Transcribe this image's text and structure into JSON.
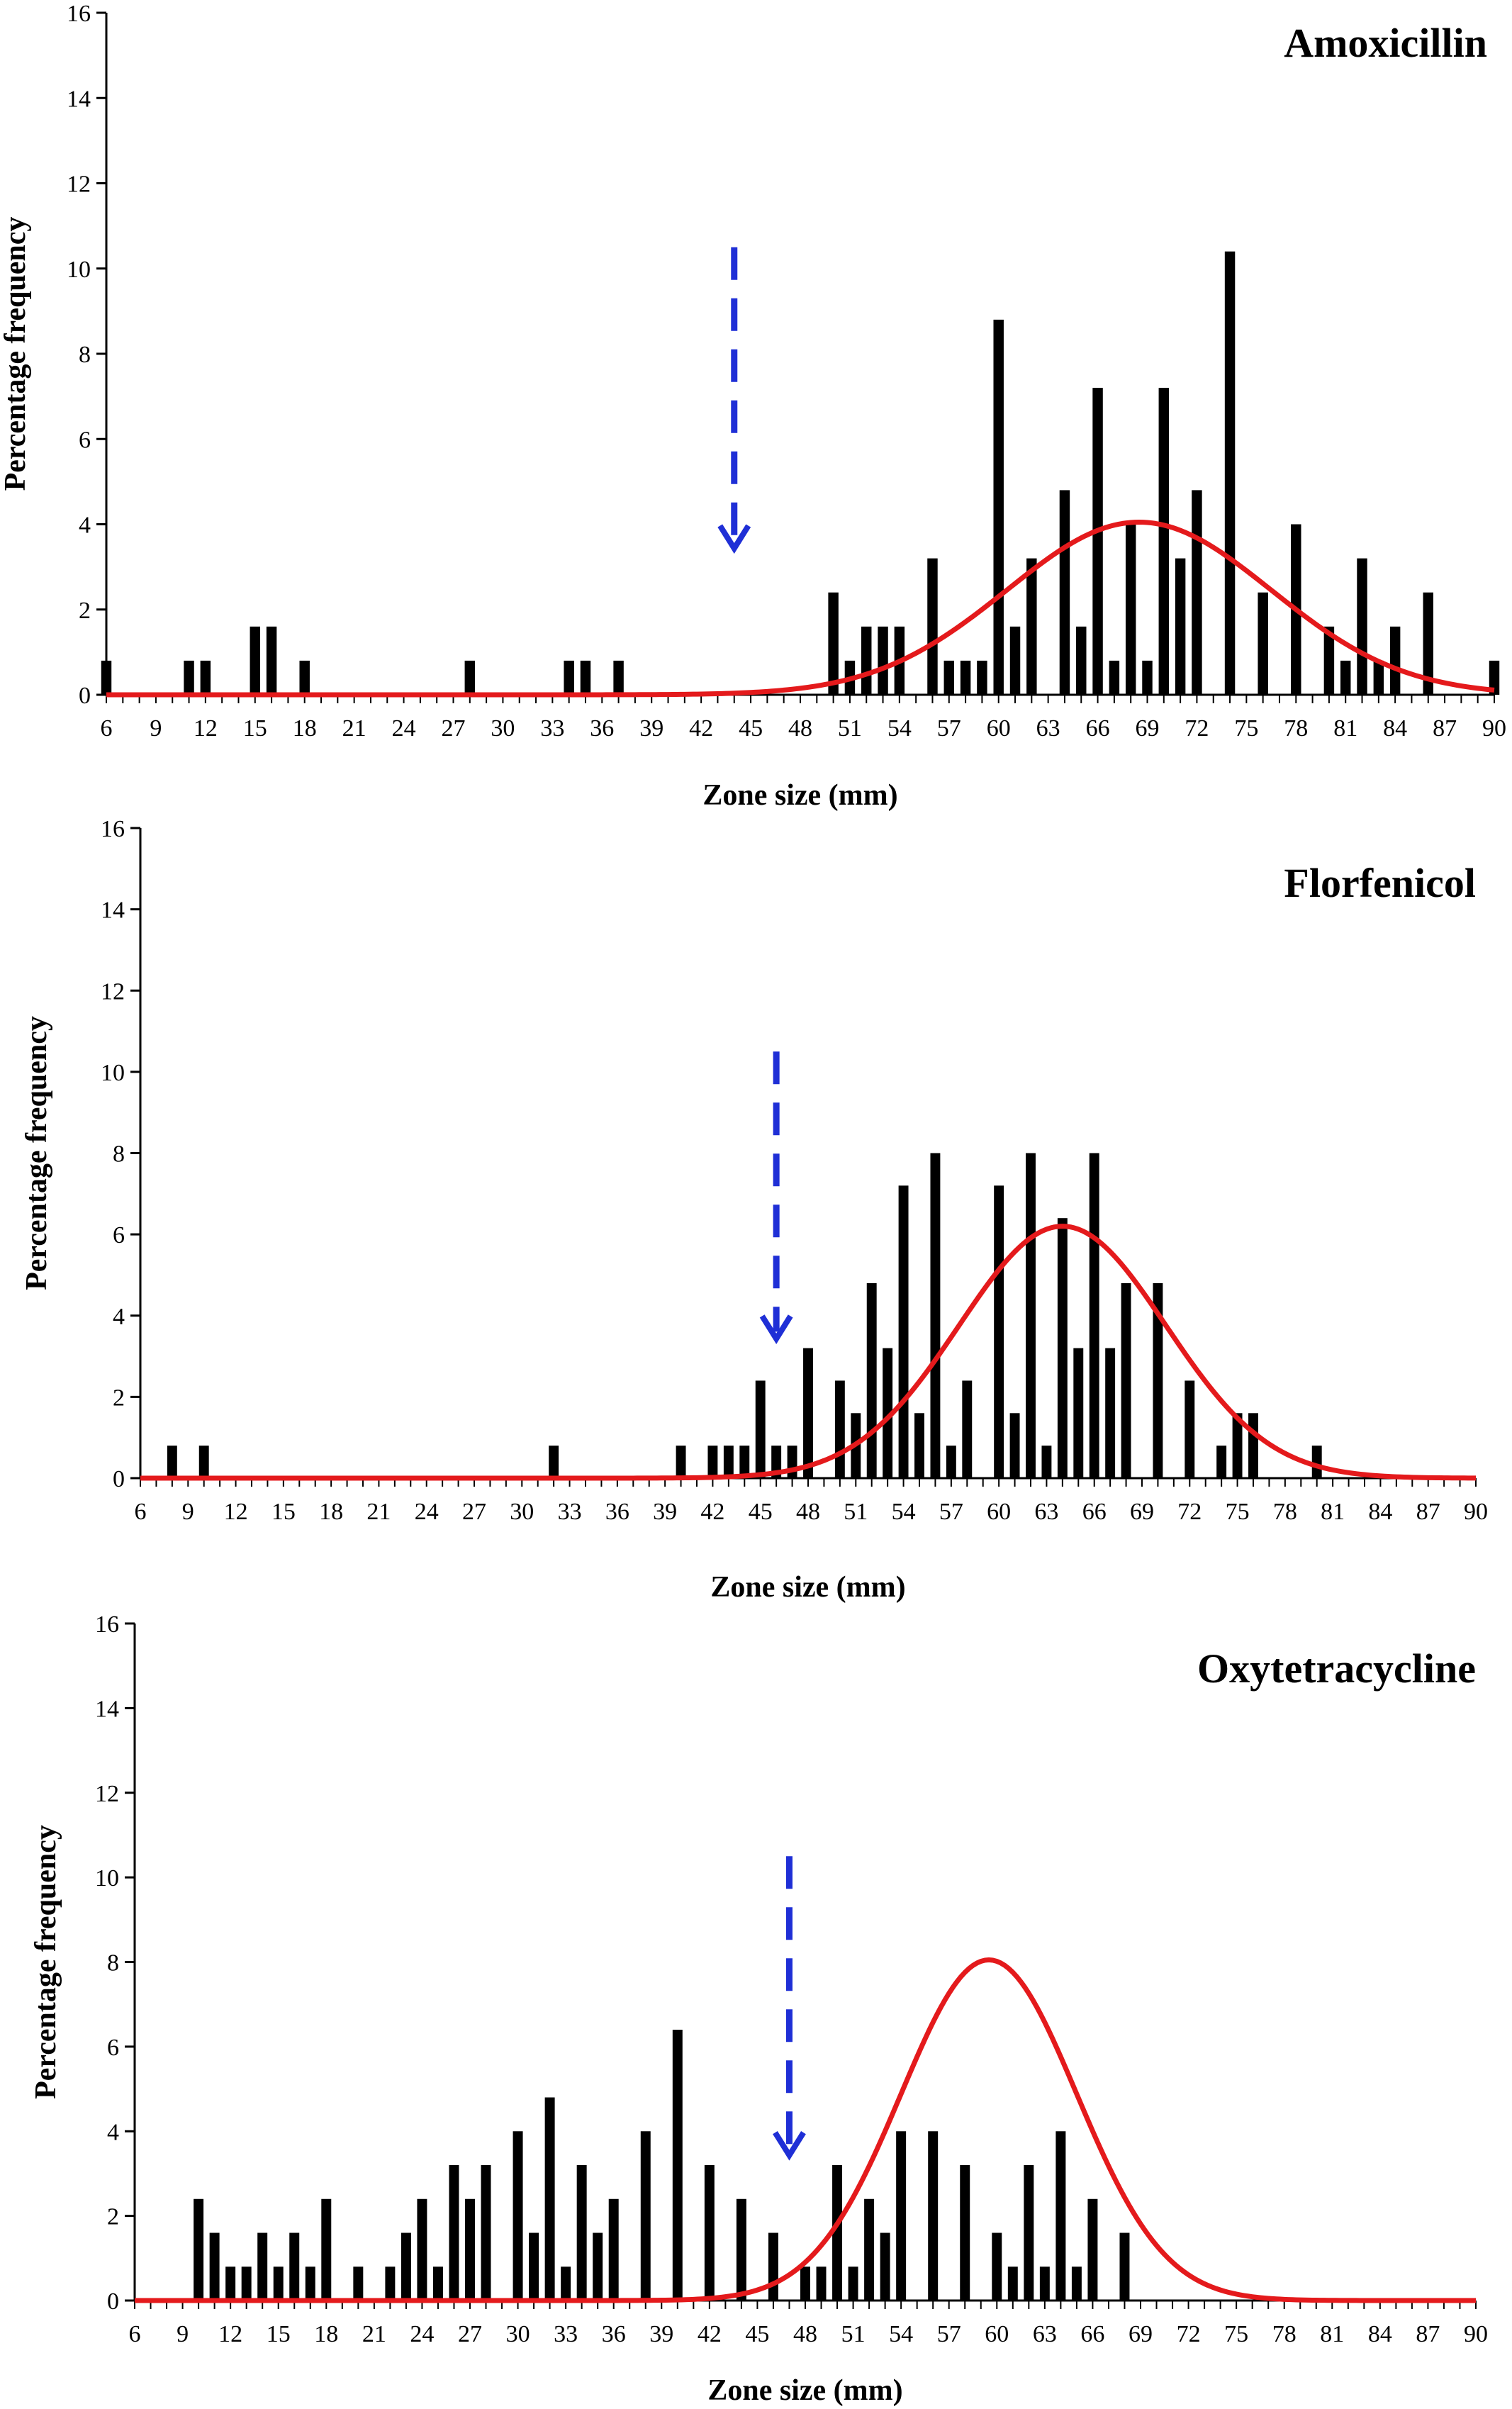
{
  "colors": {
    "bar": "#000000",
    "curve": "#e41a1c",
    "arrow": "#1f2fd6",
    "axis": "#000000"
  },
  "chart_data": [
    {
      "type": "bar",
      "title": "Amoxicillin",
      "xlabel": "Zone size (mm)",
      "ylabel": "Percentage frequency",
      "xlim": [
        6,
        90
      ],
      "ylim": [
        0,
        16
      ],
      "x_ticks": [
        6,
        9,
        12,
        15,
        18,
        21,
        24,
        27,
        30,
        33,
        36,
        39,
        42,
        45,
        48,
        51,
        54,
        57,
        60,
        63,
        66,
        69,
        72,
        75,
        78,
        81,
        84,
        87,
        90
      ],
      "y_ticks": [
        0,
        2,
        4,
        6,
        8,
        10,
        12,
        14,
        16
      ],
      "bars": [
        {
          "x": 6,
          "y": 0.8
        },
        {
          "x": 11,
          "y": 0.8
        },
        {
          "x": 12,
          "y": 0.8
        },
        {
          "x": 15,
          "y": 1.6
        },
        {
          "x": 16,
          "y": 1.6
        },
        {
          "x": 18,
          "y": 0.8
        },
        {
          "x": 28,
          "y": 0.8
        },
        {
          "x": 34,
          "y": 0.8
        },
        {
          "x": 35,
          "y": 0.8
        },
        {
          "x": 37,
          "y": 0.8
        },
        {
          "x": 50,
          "y": 2.4
        },
        {
          "x": 51,
          "y": 0.8
        },
        {
          "x": 52,
          "y": 1.6
        },
        {
          "x": 53,
          "y": 1.6
        },
        {
          "x": 54,
          "y": 1.6
        },
        {
          "x": 56,
          "y": 3.2
        },
        {
          "x": 57,
          "y": 0.8
        },
        {
          "x": 58,
          "y": 0.8
        },
        {
          "x": 59,
          "y": 0.8
        },
        {
          "x": 60,
          "y": 8.8
        },
        {
          "x": 61,
          "y": 1.6
        },
        {
          "x": 62,
          "y": 3.2
        },
        {
          "x": 64,
          "y": 4.8
        },
        {
          "x": 65,
          "y": 1.6
        },
        {
          "x": 66,
          "y": 7.2
        },
        {
          "x": 67,
          "y": 0.8
        },
        {
          "x": 68,
          "y": 4.0
        },
        {
          "x": 69,
          "y": 0.8
        },
        {
          "x": 70,
          "y": 7.2
        },
        {
          "x": 71,
          "y": 3.2
        },
        {
          "x": 72,
          "y": 4.8
        },
        {
          "x": 74,
          "y": 10.4
        },
        {
          "x": 76,
          "y": 2.4
        },
        {
          "x": 78,
          "y": 4.0
        },
        {
          "x": 80,
          "y": 1.6
        },
        {
          "x": 81,
          "y": 0.8
        },
        {
          "x": 82,
          "y": 3.2
        },
        {
          "x": 83,
          "y": 0.8
        },
        {
          "x": 84,
          "y": 1.6
        },
        {
          "x": 86,
          "y": 2.4
        },
        {
          "x": 90,
          "y": 0.8
        }
      ],
      "normal_curve": {
        "mean": 68.5,
        "sd": 8.0,
        "peak": 4.05
      },
      "cutoff_arrow_x": 44
    },
    {
      "type": "bar",
      "title": "Florfenicol",
      "xlabel": "Zone size (mm)",
      "ylabel": "Percentage frequency",
      "xlim": [
        6,
        90
      ],
      "ylim": [
        0,
        16
      ],
      "x_ticks": [
        6,
        9,
        12,
        15,
        18,
        21,
        24,
        27,
        30,
        33,
        36,
        39,
        42,
        45,
        48,
        51,
        54,
        57,
        60,
        63,
        66,
        69,
        72,
        75,
        78,
        81,
        84,
        87,
        90
      ],
      "y_ticks": [
        0,
        2,
        4,
        6,
        8,
        10,
        12,
        14,
        16
      ],
      "bars": [
        {
          "x": 8,
          "y": 0.8
        },
        {
          "x": 10,
          "y": 0.8
        },
        {
          "x": 32,
          "y": 0.8
        },
        {
          "x": 40,
          "y": 0.8
        },
        {
          "x": 42,
          "y": 0.8
        },
        {
          "x": 43,
          "y": 0.8
        },
        {
          "x": 44,
          "y": 0.8
        },
        {
          "x": 45,
          "y": 2.4
        },
        {
          "x": 46,
          "y": 0.8
        },
        {
          "x": 47,
          "y": 0.8
        },
        {
          "x": 48,
          "y": 3.2
        },
        {
          "x": 50,
          "y": 2.4
        },
        {
          "x": 51,
          "y": 1.6
        },
        {
          "x": 52,
          "y": 4.8
        },
        {
          "x": 53,
          "y": 3.2
        },
        {
          "x": 54,
          "y": 7.2
        },
        {
          "x": 55,
          "y": 1.6
        },
        {
          "x": 56,
          "y": 8.0
        },
        {
          "x": 57,
          "y": 0.8
        },
        {
          "x": 58,
          "y": 2.4
        },
        {
          "x": 60,
          "y": 7.2
        },
        {
          "x": 61,
          "y": 1.6
        },
        {
          "x": 62,
          "y": 8.0
        },
        {
          "x": 63,
          "y": 0.8
        },
        {
          "x": 64,
          "y": 6.4
        },
        {
          "x": 65,
          "y": 3.2
        },
        {
          "x": 66,
          "y": 8.0
        },
        {
          "x": 67,
          "y": 3.2
        },
        {
          "x": 68,
          "y": 4.8
        },
        {
          "x": 70,
          "y": 4.8
        },
        {
          "x": 72,
          "y": 2.4
        },
        {
          "x": 74,
          "y": 0.8
        },
        {
          "x": 75,
          "y": 1.6
        },
        {
          "x": 76,
          "y": 1.6
        },
        {
          "x": 80,
          "y": 0.8
        }
      ],
      "normal_curve": {
        "mean": 64.0,
        "sd": 6.5,
        "peak": 6.2
      },
      "cutoff_arrow_x": 46
    },
    {
      "type": "bar",
      "title": "Oxytetracycline",
      "xlabel": "Zone size (mm)",
      "ylabel": "Percentage frequency",
      "xlim": [
        6,
        90
      ],
      "ylim": [
        0,
        16
      ],
      "x_ticks": [
        6,
        9,
        12,
        15,
        18,
        21,
        24,
        27,
        30,
        33,
        36,
        39,
        42,
        45,
        48,
        51,
        54,
        57,
        60,
        63,
        66,
        69,
        72,
        75,
        78,
        81,
        84,
        87,
        90
      ],
      "y_ticks": [
        0,
        2,
        4,
        6,
        8,
        10,
        12,
        14,
        16
      ],
      "bars": [
        {
          "x": 10,
          "y": 2.4
        },
        {
          "x": 11,
          "y": 1.6
        },
        {
          "x": 12,
          "y": 0.8
        },
        {
          "x": 13,
          "y": 0.8
        },
        {
          "x": 14,
          "y": 1.6
        },
        {
          "x": 15,
          "y": 0.8
        },
        {
          "x": 16,
          "y": 1.6
        },
        {
          "x": 17,
          "y": 0.8
        },
        {
          "x": 18,
          "y": 2.4
        },
        {
          "x": 20,
          "y": 0.8
        },
        {
          "x": 22,
          "y": 0.8
        },
        {
          "x": 23,
          "y": 1.6
        },
        {
          "x": 24,
          "y": 2.4
        },
        {
          "x": 25,
          "y": 0.8
        },
        {
          "x": 26,
          "y": 3.2
        },
        {
          "x": 27,
          "y": 2.4
        },
        {
          "x": 28,
          "y": 3.2
        },
        {
          "x": 30,
          "y": 4.0
        },
        {
          "x": 31,
          "y": 1.6
        },
        {
          "x": 32,
          "y": 4.8
        },
        {
          "x": 33,
          "y": 0.8
        },
        {
          "x": 34,
          "y": 3.2
        },
        {
          "x": 35,
          "y": 1.6
        },
        {
          "x": 36,
          "y": 2.4
        },
        {
          "x": 38,
          "y": 4.0
        },
        {
          "x": 40,
          "y": 6.4
        },
        {
          "x": 42,
          "y": 3.2
        },
        {
          "x": 44,
          "y": 2.4
        },
        {
          "x": 46,
          "y": 1.6
        },
        {
          "x": 48,
          "y": 0.8
        },
        {
          "x": 49,
          "y": 0.8
        },
        {
          "x": 50,
          "y": 3.2
        },
        {
          "x": 51,
          "y": 0.8
        },
        {
          "x": 52,
          "y": 2.4
        },
        {
          "x": 53,
          "y": 1.6
        },
        {
          "x": 54,
          "y": 4.0
        },
        {
          "x": 56,
          "y": 4.0
        },
        {
          "x": 58,
          "y": 3.2
        },
        {
          "x": 60,
          "y": 1.6
        },
        {
          "x": 61,
          "y": 0.8
        },
        {
          "x": 62,
          "y": 3.2
        },
        {
          "x": 63,
          "y": 0.8
        },
        {
          "x": 64,
          "y": 4.0
        },
        {
          "x": 65,
          "y": 0.8
        },
        {
          "x": 66,
          "y": 2.4
        },
        {
          "x": 68,
          "y": 1.6
        }
      ],
      "normal_curve": {
        "mean": 59.5,
        "sd": 5.5,
        "peak": 8.05
      },
      "cutoff_arrow_x": 47
    }
  ]
}
